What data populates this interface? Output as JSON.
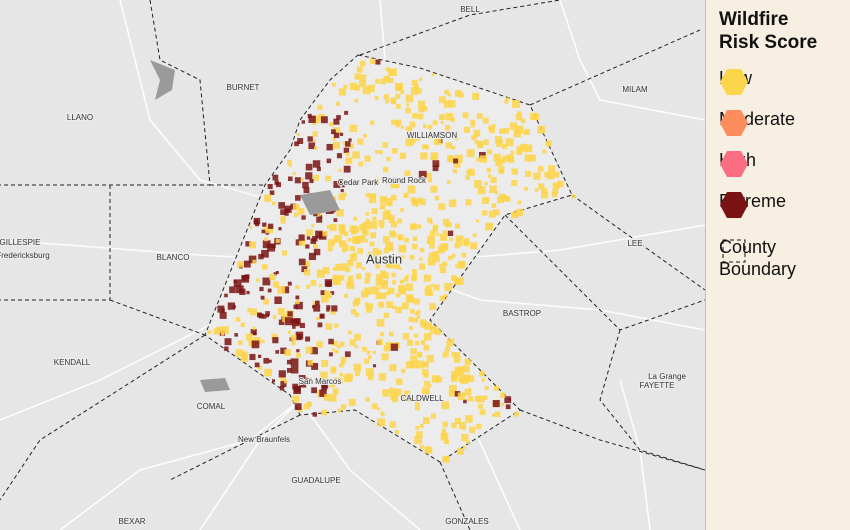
{
  "legend": {
    "title": "Wildfire Risk Score",
    "items": [
      {
        "label": "Low",
        "color": "#fdd54a"
      },
      {
        "label": "Moderate",
        "color": "#fd8d5c"
      },
      {
        "label": "High",
        "color": "#fb6d83"
      },
      {
        "label": "Extreme",
        "color": "#7a1414"
      }
    ],
    "boundary": "County Boundary"
  },
  "map": {
    "labels": [
      "BELL",
      "BURNET",
      "MILAM",
      "LLANO",
      "WILLIAMSON",
      "Cedar Park",
      "Round Rock",
      "Austin",
      "GILLESPIE",
      "Fredericksburg",
      "BLANCO",
      "LEE",
      "BASTROP",
      "KENDALL",
      "San Marcos",
      "COMAL",
      "CALDWELL",
      "La Grange",
      "FAYETTE",
      "New Braunfels",
      "GUADALUPE",
      "BEXAR",
      "GONZALES"
    ]
  }
}
